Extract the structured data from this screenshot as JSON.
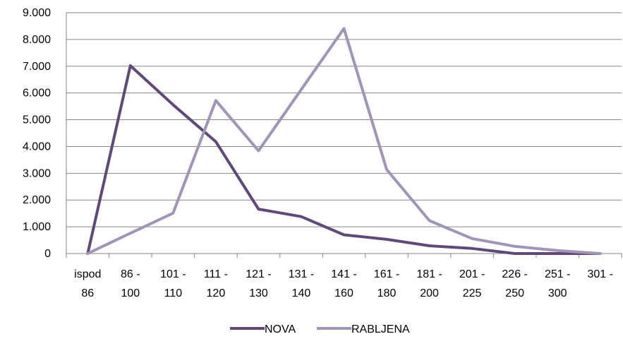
{
  "chart_data": {
    "type": "line",
    "title": "",
    "xlabel": "",
    "ylabel": "",
    "categories": [
      [
        "ispod",
        "86"
      ],
      [
        "86 -",
        "100"
      ],
      [
        "101 -",
        "110"
      ],
      [
        "111 -",
        "120"
      ],
      [
        "121 -",
        "130"
      ],
      [
        "131 -",
        "140"
      ],
      [
        "141 -",
        "160"
      ],
      [
        "161 -",
        "180"
      ],
      [
        "181 -",
        "200"
      ],
      [
        "201 -",
        "225"
      ],
      [
        "226 -",
        "250"
      ],
      [
        "251 -",
        "300"
      ],
      [
        "301 -",
        ""
      ]
    ],
    "ylim": [
      0,
      9000
    ],
    "yticks": [
      0,
      1000,
      2000,
      3000,
      4000,
      5000,
      6000,
      7000,
      8000,
      9000
    ],
    "ytick_labels": [
      "0",
      "1.000",
      "2.000",
      "3.000",
      "4.000",
      "5.000",
      "6.000",
      "7.000",
      "8.000",
      "9.000"
    ],
    "grid": true,
    "legend_position": "bottom",
    "series": [
      {
        "name": "NOVA",
        "color": "#60497a",
        "values": [
          0,
          7020,
          5560,
          4180,
          1660,
          1380,
          700,
          530,
          290,
          190,
          0,
          0,
          0
        ]
      },
      {
        "name": "RABLJENA",
        "color": "#a094b8",
        "values": [
          0,
          760,
          1510,
          5720,
          3840,
          6130,
          8410,
          3140,
          1230,
          560,
          270,
          110,
          0
        ]
      }
    ]
  }
}
